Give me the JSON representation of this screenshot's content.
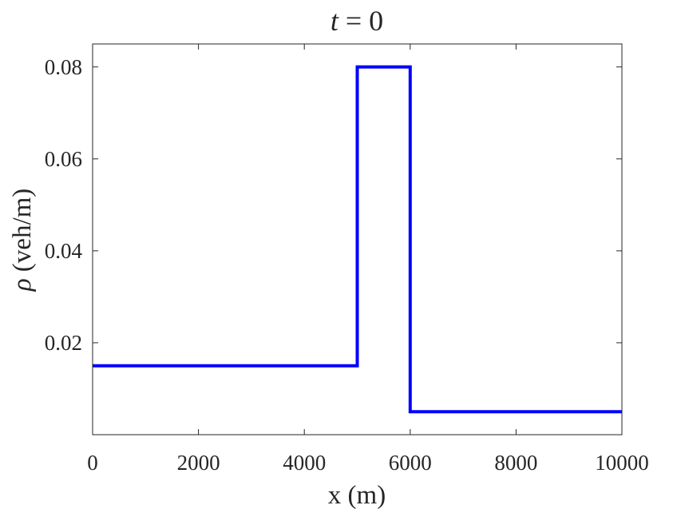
{
  "chart_data": {
    "type": "line",
    "title": "t = 0",
    "title_parts": {
      "var": "t",
      "rest": " = 0"
    },
    "xlabel": "x (m)",
    "ylabel": "ρ (veh/m)",
    "ylabel_parts": {
      "symbol": "ρ",
      "rest": " (veh/m)"
    },
    "xlim": [
      0,
      10000
    ],
    "ylim": [
      0,
      0.085
    ],
    "xticks": [
      0,
      2000,
      4000,
      6000,
      8000,
      10000
    ],
    "xtick_labels": [
      "0",
      "2000",
      "4000",
      "6000",
      "8000",
      "10000"
    ],
    "yticks": [
      0.02,
      0.04,
      0.06,
      0.08
    ],
    "ytick_labels": [
      "0.02",
      "0.04",
      "0.06",
      "0.08"
    ],
    "grid": false,
    "box": true,
    "series": [
      {
        "color": "#0000ff",
        "x": [
          0,
          5000,
          5000,
          6000,
          6000,
          10000
        ],
        "y": [
          0.015,
          0.015,
          0.08,
          0.08,
          0.005,
          0.005
        ]
      }
    ]
  }
}
